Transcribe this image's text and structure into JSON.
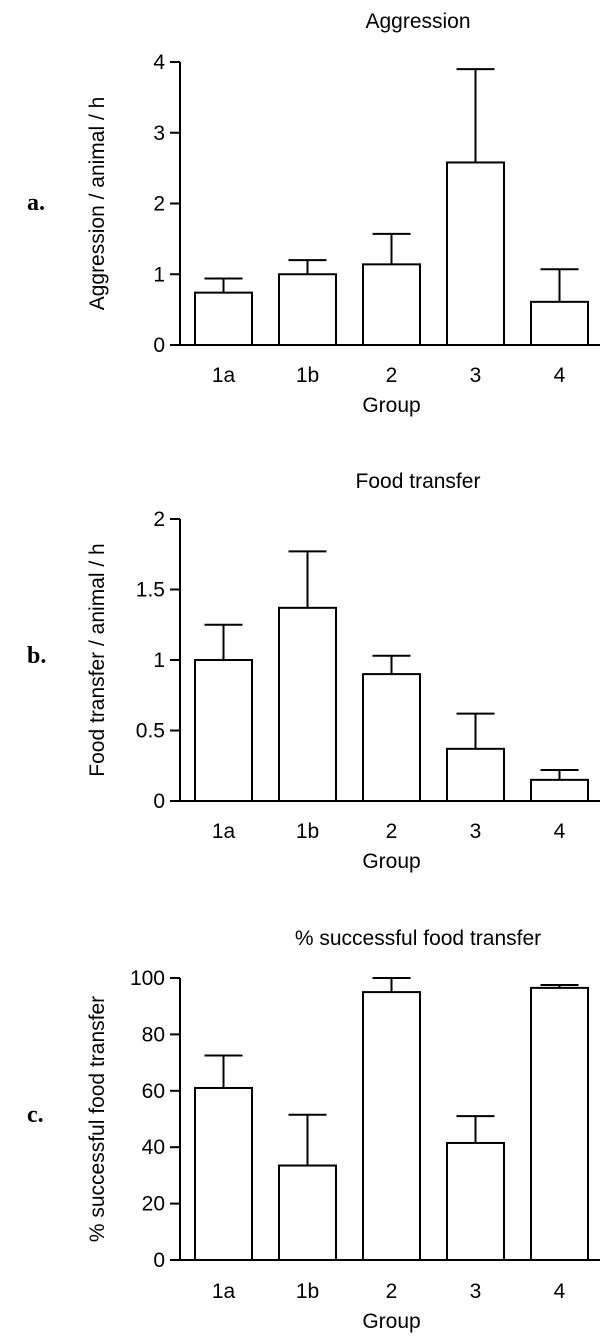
{
  "chart_data": [
    {
      "type": "bar",
      "panel_label": "a.",
      "title": "Aggression",
      "ylabel": "Aggression / animal / h",
      "xlabel": "Group",
      "categories": [
        "1a",
        "1b",
        "2",
        "3",
        "4"
      ],
      "values": [
        0.74,
        1.0,
        1.14,
        2.58,
        0.61
      ],
      "error_upper": [
        0.94,
        1.2,
        1.57,
        3.9,
        1.07
      ],
      "ylim": [
        0,
        4
      ],
      "yticks": [
        0,
        1,
        2,
        3,
        4
      ],
      "ytick_labels": [
        "0",
        "1",
        "2",
        "3",
        "4"
      ],
      "grid": false,
      "bar_color": "#ffffff",
      "edge_color": "#000000"
    },
    {
      "type": "bar",
      "panel_label": "b.",
      "title": "Food transfer",
      "ylabel": "Food transfer / animal / h",
      "xlabel": "Group",
      "categories": [
        "1a",
        "1b",
        "2",
        "3",
        "4"
      ],
      "values": [
        1.0,
        1.37,
        0.9,
        0.37,
        0.15
      ],
      "error_upper": [
        1.25,
        1.77,
        1.03,
        0.62,
        0.22
      ],
      "ylim": [
        0,
        2
      ],
      "yticks": [
        0,
        0.5,
        1,
        1.5,
        2
      ],
      "ytick_labels": [
        "0",
        "0.5",
        "1",
        "1.5",
        "2"
      ],
      "grid": false,
      "bar_color": "#ffffff",
      "edge_color": "#000000"
    },
    {
      "type": "bar",
      "panel_label": "c.",
      "title": "% successful food transfer",
      "ylabel": "% successful food transfer",
      "xlabel": "Group",
      "categories": [
        "1a",
        "1b",
        "2",
        "3",
        "4"
      ],
      "values": [
        61,
        33.5,
        95,
        41.5,
        96.5
      ],
      "error_upper": [
        72.5,
        51.5,
        100,
        51,
        97.5
      ],
      "ylim": [
        0,
        100
      ],
      "yticks": [
        0,
        20,
        40,
        60,
        80,
        100
      ],
      "ytick_labels": [
        "0",
        "20",
        "40",
        "60",
        "80",
        "100"
      ],
      "grid": false,
      "bar_color": "#ffffff",
      "edge_color": "#000000"
    }
  ]
}
